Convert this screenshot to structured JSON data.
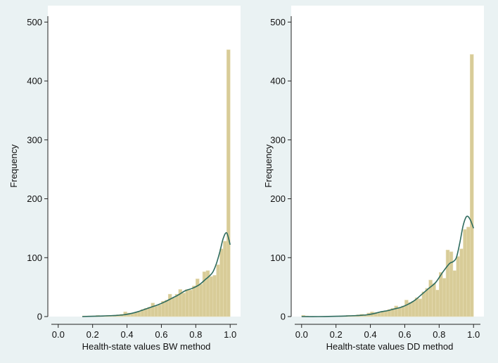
{
  "colors": {
    "background": "#eaf2f3",
    "plot_area": "#ffffff",
    "bar_fill": "#d8cc98",
    "bar_edge": "#e6dcb4",
    "density_line": "#2e6b5e",
    "axis": "#222222"
  },
  "chart_data": [
    {
      "type": "bar",
      "title": "",
      "xlabel": "Health-state values BW method",
      "ylabel": "Frequency",
      "xlim": [
        -0.04,
        1.04
      ],
      "ylim": [
        0,
        510
      ],
      "xticks": [
        "0.0",
        "0.2",
        "0.4",
        "0.6",
        "0.8",
        "1.0"
      ],
      "yticks": [
        "0",
        "100",
        "200",
        "300",
        "400",
        "500"
      ],
      "grid": false,
      "bin_width": 0.02,
      "bin_starts": [
        0.14,
        0.16,
        0.18,
        0.2,
        0.22,
        0.24,
        0.26,
        0.28,
        0.3,
        0.32,
        0.34,
        0.36,
        0.38,
        0.4,
        0.42,
        0.44,
        0.46,
        0.48,
        0.5,
        0.52,
        0.54,
        0.56,
        0.58,
        0.6,
        0.62,
        0.64,
        0.66,
        0.68,
        0.7,
        0.72,
        0.74,
        0.76,
        0.78,
        0.8,
        0.82,
        0.84,
        0.86,
        0.88,
        0.9,
        0.92,
        0.94,
        0.96,
        0.98
      ],
      "frequencies": [
        1,
        1,
        1,
        1,
        2,
        1,
        1,
        2,
        1,
        2,
        3,
        4,
        8,
        6,
        5,
        7,
        8,
        12,
        14,
        16,
        23,
        18,
        20,
        26,
        28,
        38,
        32,
        38,
        46,
        40,
        46,
        45,
        52,
        64,
        55,
        76,
        78,
        68,
        70,
        88,
        115,
        128,
        453
      ],
      "density_curve": {
        "x": [
          0.14,
          0.2,
          0.26,
          0.3,
          0.34,
          0.38,
          0.42,
          0.46,
          0.5,
          0.54,
          0.58,
          0.62,
          0.66,
          0.7,
          0.74,
          0.78,
          0.82,
          0.86,
          0.88,
          0.9,
          0.92,
          0.94,
          0.96,
          0.98,
          1.0
        ],
        "y": [
          0,
          0.5,
          1,
          1.5,
          2,
          3,
          5,
          8,
          12,
          16,
          20,
          25,
          31,
          37,
          44,
          48,
          54,
          64,
          69,
          76,
          90,
          110,
          133,
          142,
          122
        ]
      }
    },
    {
      "type": "bar",
      "title": "",
      "xlabel": "Health-state values DD method",
      "ylabel": "Frequency",
      "xlim": [
        -0.04,
        1.04
      ],
      "ylim": [
        0,
        510
      ],
      "xticks": [
        "0.0",
        "0.2",
        "0.4",
        "0.6",
        "0.8",
        "1.0"
      ],
      "yticks": [
        "0",
        "100",
        "200",
        "300",
        "400",
        "500"
      ],
      "grid": false,
      "bin_width": 0.02,
      "bin_starts": [
        0.0,
        0.02,
        0.04,
        0.06,
        0.08,
        0.1,
        0.12,
        0.14,
        0.16,
        0.18,
        0.2,
        0.22,
        0.24,
        0.26,
        0.28,
        0.3,
        0.32,
        0.34,
        0.36,
        0.38,
        0.4,
        0.42,
        0.44,
        0.46,
        0.48,
        0.5,
        0.52,
        0.54,
        0.56,
        0.58,
        0.6,
        0.62,
        0.64,
        0.66,
        0.68,
        0.7,
        0.72,
        0.74,
        0.76,
        0.78,
        0.8,
        0.82,
        0.84,
        0.86,
        0.88,
        0.9,
        0.92,
        0.94,
        0.96,
        0.98
      ],
      "frequencies": [
        2,
        1,
        0,
        0,
        0,
        0,
        0,
        0,
        0,
        0,
        0,
        1,
        1,
        2,
        1,
        2,
        3,
        4,
        3,
        6,
        8,
        7,
        6,
        9,
        10,
        12,
        14,
        18,
        15,
        18,
        28,
        24,
        26,
        32,
        30,
        42,
        48,
        62,
        56,
        45,
        75,
        65,
        113,
        110,
        78,
        102,
        115,
        148,
        152,
        445
      ],
      "density_curve": {
        "x": [
          0.0,
          0.1,
          0.2,
          0.26,
          0.3,
          0.34,
          0.38,
          0.42,
          0.46,
          0.5,
          0.54,
          0.58,
          0.62,
          0.66,
          0.7,
          0.74,
          0.78,
          0.82,
          0.86,
          0.88,
          0.9,
          0.92,
          0.94,
          0.96,
          0.98,
          1.0
        ],
        "y": [
          0,
          0,
          0.5,
          1,
          1.5,
          2,
          3,
          5,
          8,
          10,
          13,
          16,
          21,
          28,
          38,
          48,
          58,
          75,
          90,
          93,
          100,
          125,
          155,
          170,
          165,
          150
        ]
      }
    }
  ]
}
